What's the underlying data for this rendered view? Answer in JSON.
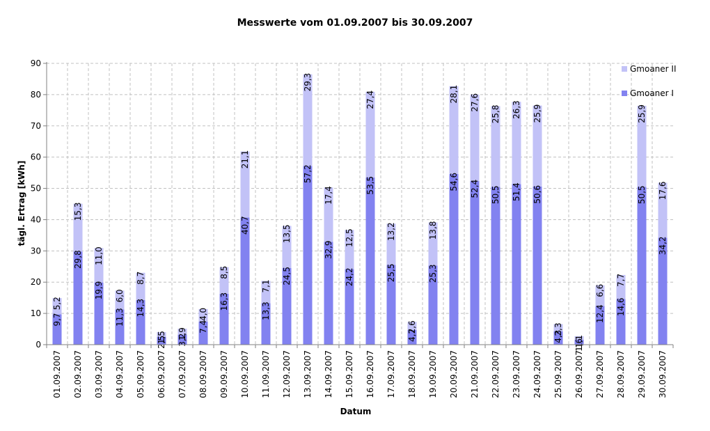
{
  "chart_data": {
    "type": "bar",
    "stacked": true,
    "title": "Messwerte vom 01.09.2007 bis 30.09.2007",
    "xlabel": "Datum",
    "ylabel": "tägl. Ertrag [kWh]",
    "ylim": [
      0,
      90
    ],
    "yticks": [
      "0",
      "10",
      "20",
      "30",
      "40",
      "50",
      "60",
      "70",
      "80",
      "90"
    ],
    "grid": true,
    "legend_position": "top-right",
    "categories": [
      "01.09.2007",
      "02.09.2007",
      "03.09.2007",
      "04.09.2007",
      "05.09.2007",
      "06.09.2007",
      "07.09.2007",
      "08.09.2007",
      "09.09.2007",
      "10.09.2007",
      "11.09.2007",
      "12.09.2007",
      "13.09.2007",
      "14.09.2007",
      "15.09.2007",
      "16.09.2007",
      "17.09.2007",
      "18.09.2007",
      "19.09.2007",
      "20.09.2007",
      "21.09.2007",
      "22.09.2007",
      "23.09.2007",
      "24.09.2007",
      "25.09.2007",
      "26.09.2007",
      "27.09.2007",
      "28.09.2007",
      "29.09.2007",
      "30.09.2007"
    ],
    "series": [
      {
        "name": "Gmoaner I",
        "color": "#8282f0",
        "values": [
          9.7,
          29.8,
          19.9,
          11.3,
          14.3,
          2.5,
          3.2,
          7.4,
          16.3,
          40.7,
          13.3,
          24.5,
          57.2,
          32.9,
          24.2,
          53.5,
          25.5,
          4.7,
          25.3,
          54.6,
          52.4,
          50.5,
          51.4,
          50.6,
          4.3,
          1.6,
          12.4,
          14.6,
          50.5,
          34.2
        ],
        "labels": [
          "9,7",
          "29,8",
          "19,9",
          "11,3",
          "14,3",
          "2,5",
          "3,2",
          "7,4",
          "16,3",
          "40,7",
          "13,3",
          "24,5",
          "57,2",
          "32,9",
          "24,2",
          "53,5",
          "25,5",
          "4,7",
          "25,3",
          "54,6",
          "52,4",
          "50,5",
          "51,4",
          "50,6",
          "4,3",
          "1,6",
          "12,4",
          "14,6",
          "50,5",
          "34,2"
        ]
      },
      {
        "name": "Gmoaner II",
        "color": "#c2c2f7",
        "values": [
          5.2,
          15.3,
          11.0,
          6.0,
          8.7,
          1.5,
          1.9,
          4.0,
          8.5,
          21.1,
          7.1,
          13.5,
          29.3,
          17.4,
          12.5,
          27.4,
          13.2,
          2.6,
          13.8,
          28.1,
          27.6,
          25.8,
          26.3,
          25.9,
          2.3,
          1.1,
          6.6,
          7.7,
          25.9,
          17.6
        ],
        "labels": [
          "5,2",
          "15,3",
          "11,0",
          "6,0",
          "8,7",
          "1,5",
          "1,9",
          "4,0",
          "8,5",
          "21,1",
          "7,1",
          "13,5",
          "29,3",
          "17,4",
          "12,5",
          "27,4",
          "13,2",
          "2,6",
          "13,8",
          "28,1",
          "27,6",
          "25,8",
          "26,3",
          "25,9",
          "2,3",
          "1,1",
          "6,6",
          "7,7",
          "25,9",
          "17,6"
        ]
      }
    ]
  }
}
